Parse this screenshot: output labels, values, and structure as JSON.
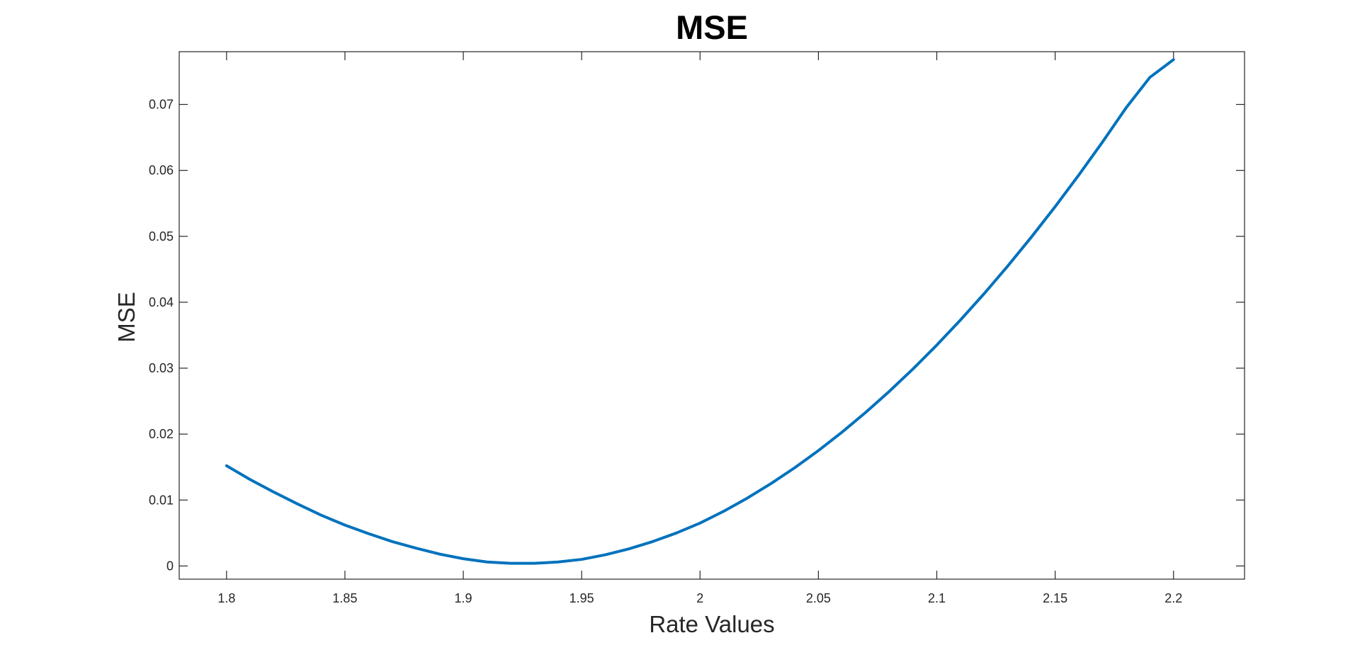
{
  "chart_data": {
    "type": "line",
    "title": "MSE",
    "xlabel": "Rate Values",
    "ylabel": "MSE",
    "xlim": [
      1.78,
      2.23
    ],
    "ylim": [
      -0.002,
      0.078
    ],
    "xticks": [
      1.8,
      1.85,
      1.9,
      1.95,
      2,
      2.05,
      2.1,
      2.15,
      2.2
    ],
    "xtick_labels": [
      "1.8",
      "1.85",
      "1.9",
      "1.95",
      "2",
      "2.05",
      "2.1",
      "2.15",
      "2.2"
    ],
    "yticks": [
      0,
      0.01,
      0.02,
      0.03,
      0.04,
      0.05,
      0.06,
      0.07
    ],
    "ytick_labels": [
      "0",
      "0.01",
      "0.02",
      "0.03",
      "0.04",
      "0.05",
      "0.06",
      "0.07"
    ],
    "grid": false,
    "legend": "none",
    "series": [
      {
        "color": "#0072BD",
        "x": [
          1.8,
          1.81,
          1.82,
          1.83,
          1.84,
          1.85,
          1.86,
          1.87,
          1.88,
          1.89,
          1.9,
          1.91,
          1.92,
          1.93,
          1.94,
          1.95,
          1.96,
          1.97,
          1.98,
          1.99,
          2.0,
          2.01,
          2.02,
          2.03,
          2.04,
          2.05,
          2.06,
          2.07,
          2.08,
          2.09,
          2.1,
          2.11,
          2.12,
          2.13,
          2.14,
          2.15,
          2.16,
          2.17,
          2.18,
          2.19,
          2.2
        ],
        "y": [
          0.0152,
          0.0131,
          0.0112,
          0.0094,
          0.0077,
          0.0062,
          0.0049,
          0.0037,
          0.0027,
          0.0018,
          0.0011,
          0.0006,
          0.0004,
          0.0004,
          0.0006,
          0.001,
          0.0017,
          0.0026,
          0.0037,
          0.005,
          0.0065,
          0.0083,
          0.0103,
          0.0125,
          0.0149,
          0.0175,
          0.0203,
          0.0233,
          0.0265,
          0.0299,
          0.0335,
          0.0373,
          0.0413,
          0.0455,
          0.0499,
          0.0545,
          0.0593,
          0.0643,
          0.0695,
          0.0741,
          0.0768
        ]
      }
    ]
  }
}
